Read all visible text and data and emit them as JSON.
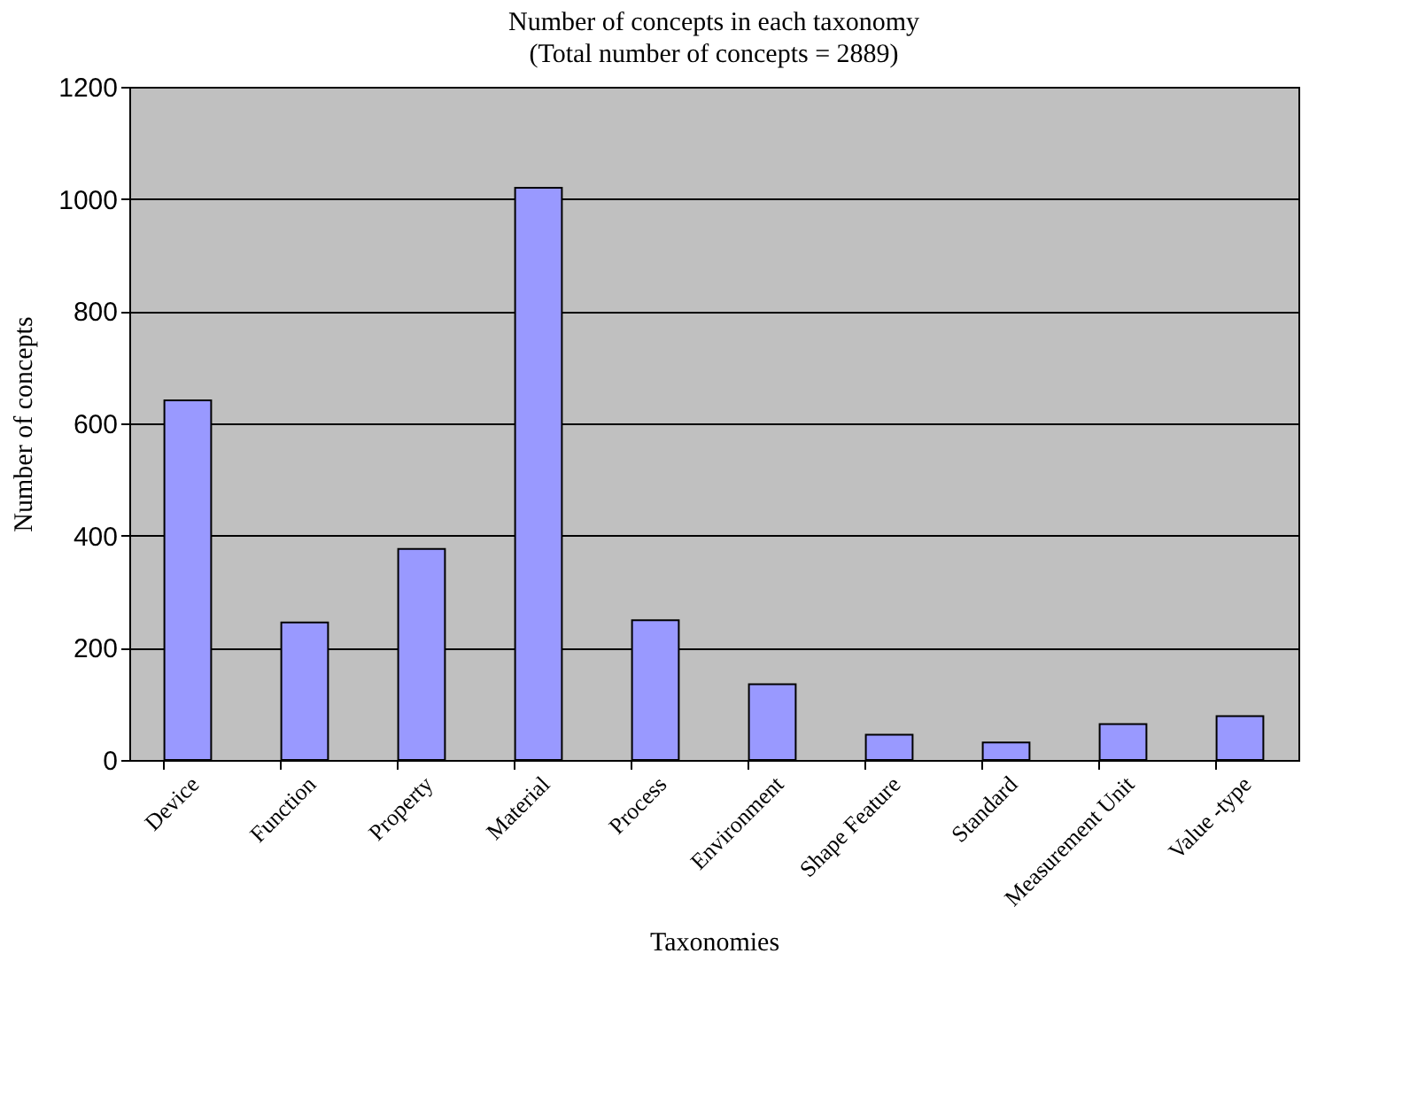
{
  "chart_data": {
    "type": "bar",
    "title": "Number of concepts in each taxonomy",
    "subtitle": "(Total number of concepts = 2889)",
    "xlabel": "Taxonomies",
    "ylabel": "Number of concepts",
    "categories": [
      "Device",
      "Function",
      "Property",
      "Material",
      "Process",
      "Environment",
      "Shape Feature",
      "Standard",
      "Measurement Unit",
      "Value -type"
    ],
    "values": [
      641,
      245,
      376,
      1020,
      249,
      135,
      45,
      31,
      64,
      78
    ],
    "color": "#9999ff",
    "ylim": [
      0,
      1200
    ],
    "yticks": [
      0,
      200,
      400,
      600,
      800,
      1000,
      1200
    ],
    "grid": "y"
  }
}
